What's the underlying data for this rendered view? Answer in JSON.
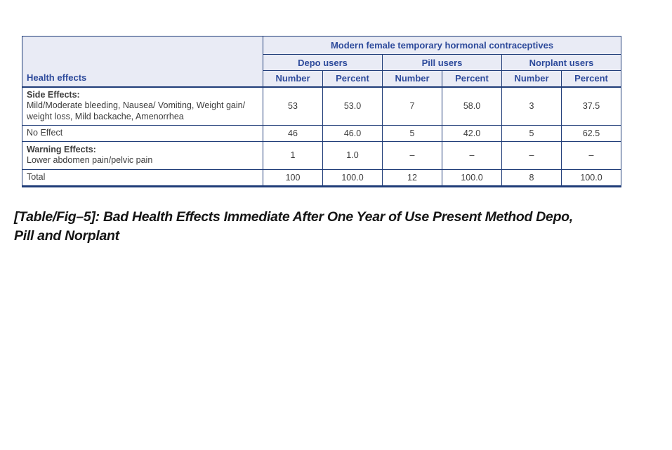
{
  "table": {
    "corner_header": "Health effects",
    "span_title": "Modern female temporary hormonal contraceptives",
    "groups": [
      "Depo users",
      "Pill users",
      "Norplant users"
    ],
    "subheaders": [
      "Number",
      "Percent",
      "Number",
      "Percent",
      "Number",
      "Percent"
    ],
    "rows": [
      {
        "title": "Side Effects:",
        "detail": "Mild/Moderate bleeding, Nausea/ Vomiting, Weight gain/ weight loss, Mild backache, Amenorrhea",
        "values": [
          "53",
          "53.0",
          "7",
          "58.0",
          "3",
          "37.5"
        ]
      },
      {
        "title": "",
        "detail": "No Effect",
        "values": [
          "46",
          "46.0",
          "5",
          "42.0",
          "5",
          "62.5"
        ]
      },
      {
        "title": "Warning Effects:",
        "detail": "Lower abdomen pain/pelvic pain",
        "values": [
          "1",
          "1.0",
          "–",
          "–",
          "–",
          "–"
        ]
      },
      {
        "title": "",
        "detail": "Total",
        "values": [
          "100",
          "100.0",
          "12",
          "100.0",
          "8",
          "100.0"
        ]
      }
    ]
  },
  "caption": {
    "lines": [
      "[Table/Fig–5]: Bad Health Effects Immediate After One Year of Use Present Method Depo,",
      "Pill and Norplant"
    ]
  },
  "colors": {
    "table_border": "#1f3c78",
    "header_background": "#e9ebf5",
    "header_text": "#2d4a9b",
    "body_text": "#3c3c3c",
    "caption_text": "#151515",
    "page_background": "#ffffff"
  }
}
